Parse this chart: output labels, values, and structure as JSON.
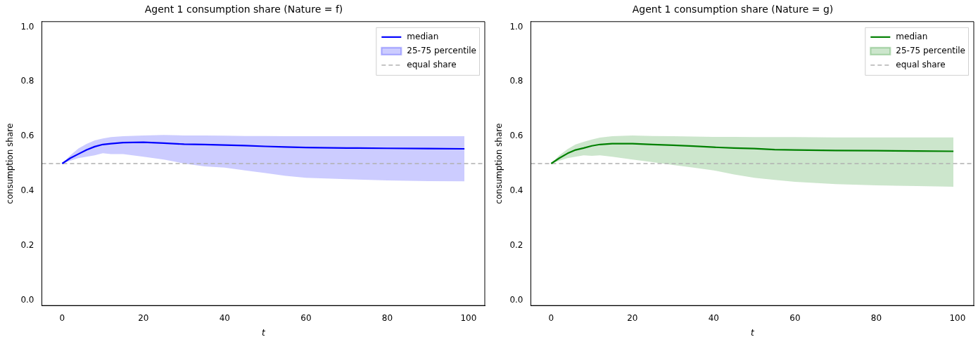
{
  "chart_data": [
    {
      "type": "line",
      "title": "Agent 1 consumption share (Nature = f)",
      "xlabel": "t",
      "ylabel": "consumption share",
      "x": [
        0,
        2,
        4,
        6,
        8,
        10,
        12,
        15,
        20,
        25,
        30,
        35,
        40,
        45,
        50,
        55,
        60,
        70,
        80,
        90,
        99
      ],
      "series": [
        {
          "name": "median",
          "color": "#0000ff",
          "values": [
            0.5,
            0.52,
            0.535,
            0.55,
            0.562,
            0.57,
            0.573,
            0.577,
            0.578,
            0.575,
            0.571,
            0.57,
            0.568,
            0.566,
            0.563,
            0.561,
            0.559,
            0.557,
            0.556,
            0.555,
            0.554
          ]
        },
        {
          "name": "25-75 percentile",
          "type": "area",
          "color": "#0000ff",
          "values": [
            null,
            null,
            null,
            null,
            null,
            null,
            null,
            null,
            null,
            null,
            null,
            null,
            null,
            null,
            null,
            null,
            null,
            null,
            null,
            null,
            null
          ],
          "lower": [
            0.5,
            0.51,
            0.52,
            0.525,
            0.53,
            0.538,
            0.535,
            0.535,
            0.525,
            0.515,
            0.5,
            0.49,
            0.485,
            0.475,
            0.465,
            0.455,
            0.448,
            0.443,
            0.438,
            0.436,
            0.435
          ],
          "upper": [
            0.5,
            0.53,
            0.555,
            0.572,
            0.585,
            0.592,
            0.597,
            0.6,
            0.603,
            0.605,
            0.603,
            0.603,
            0.602,
            0.601,
            0.601,
            0.6,
            0.6,
            0.6,
            0.6,
            0.6,
            0.6
          ]
        }
      ],
      "ref_lines": [
        {
          "axis": "y",
          "value": 0.5,
          "label": "equal share",
          "color": "#b0b0b0",
          "line_style": "dashed"
        }
      ],
      "xlim": [
        -5,
        104
      ],
      "xticks": [
        0,
        20,
        40,
        60,
        80,
        100
      ],
      "ylim": [
        -0.02,
        1.02
      ],
      "yticks": [
        {
          "value": 0,
          "label": "0.0"
        },
        {
          "value": 0.2,
          "label": "0.2"
        },
        {
          "value": 0.4,
          "label": "0.4"
        },
        {
          "value": 0.6,
          "label": "0.6"
        },
        {
          "value": 0.8,
          "label": "0.8"
        },
        {
          "value": 1,
          "label": "1.0"
        }
      ],
      "legend": "top right",
      "grid": false
    },
    {
      "type": "line",
      "title": "Agent 1 consumption share (Nature = g)",
      "xlabel": "t",
      "ylabel": "consumption share",
      "x": [
        0,
        2,
        4,
        6,
        8,
        10,
        12,
        15,
        20,
        25,
        30,
        35,
        40,
        45,
        50,
        55,
        60,
        70,
        80,
        90,
        99
      ],
      "series": [
        {
          "name": "median",
          "color": "#008000",
          "values": [
            0.5,
            0.52,
            0.537,
            0.55,
            0.557,
            0.565,
            0.57,
            0.573,
            0.573,
            0.57,
            0.567,
            0.564,
            0.56,
            0.557,
            0.555,
            0.551,
            0.55,
            0.548,
            0.547,
            0.546,
            0.545
          ]
        },
        {
          "name": "25-75 percentile",
          "type": "area",
          "color": "#008000",
          "values": [
            null,
            null,
            null,
            null,
            null,
            null,
            null,
            null,
            null,
            null,
            null,
            null,
            null,
            null,
            null,
            null,
            null,
            null,
            null,
            null,
            null
          ],
          "lower": [
            0.5,
            0.51,
            0.52,
            0.525,
            0.53,
            0.528,
            0.53,
            0.525,
            0.515,
            0.505,
            0.495,
            0.485,
            0.475,
            0.46,
            0.448,
            0.44,
            0.433,
            0.425,
            0.42,
            0.418,
            0.415
          ],
          "upper": [
            0.5,
            0.53,
            0.553,
            0.57,
            0.58,
            0.588,
            0.595,
            0.6,
            0.603,
            0.601,
            0.6,
            0.599,
            0.598,
            0.598,
            0.597,
            0.597,
            0.597,
            0.596,
            0.596,
            0.596,
            0.596
          ]
        }
      ],
      "ref_lines": [
        {
          "axis": "y",
          "value": 0.5,
          "label": "equal share",
          "color": "#b0b0b0",
          "line_style": "dashed"
        }
      ],
      "xlim": [
        -5,
        104
      ],
      "xticks": [
        0,
        20,
        40,
        60,
        80,
        100
      ],
      "ylim": [
        -0.02,
        1.02
      ],
      "yticks": [
        {
          "value": 0,
          "label": "0.0"
        },
        {
          "value": 0.2,
          "label": "0.2"
        },
        {
          "value": 0.4,
          "label": "0.4"
        },
        {
          "value": 0.6,
          "label": "0.6"
        },
        {
          "value": 0.8,
          "label": "0.8"
        },
        {
          "value": 1,
          "label": "1.0"
        }
      ],
      "legend": "top right",
      "grid": false
    }
  ]
}
